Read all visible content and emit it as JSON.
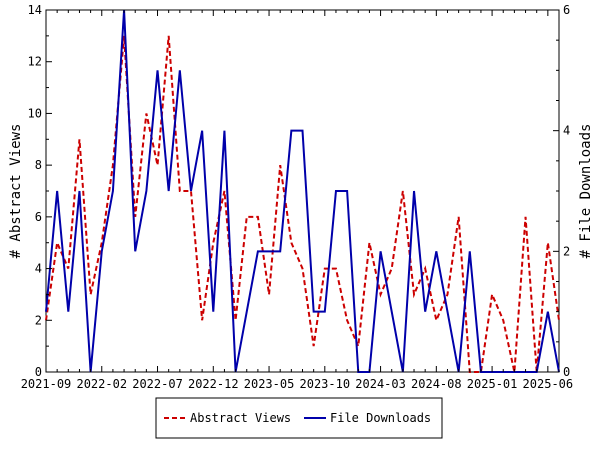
{
  "chart_data": {
    "type": "line",
    "x_tick_labels": [
      "2021-09",
      "2022-02",
      "2022-07",
      "2022-12",
      "2023-05",
      "2023-10",
      "2024-03",
      "2024-08",
      "2025-01",
      "2025-06"
    ],
    "ylabel_left": "# Abstract Views",
    "ylabel_right": "# File Downloads",
    "ylim_left": [
      0,
      14
    ],
    "ylim_right": [
      0,
      6
    ],
    "yticks_left": [
      "0",
      "2",
      "4",
      "6",
      "8",
      "10",
      "12",
      "14"
    ],
    "yticks_right": [
      "0",
      "2",
      "4",
      "6"
    ],
    "grid": false,
    "legend_position": "bottom-center",
    "x": [
      "2021-09",
      "2021-10",
      "2021-11",
      "2021-12",
      "2022-01",
      "2022-02",
      "2022-03",
      "2022-04",
      "2022-05",
      "2022-06",
      "2022-07",
      "2022-08",
      "2022-09",
      "2022-10",
      "2022-11",
      "2022-12",
      "2023-01",
      "2023-02",
      "2023-03",
      "2023-04",
      "2023-05",
      "2023-06",
      "2023-07",
      "2023-08",
      "2023-09",
      "2023-10",
      "2023-11",
      "2023-12",
      "2024-01",
      "2024-02",
      "2024-03",
      "2024-04",
      "2024-05",
      "2024-06",
      "2024-07",
      "2024-08",
      "2024-09",
      "2024-10",
      "2024-11",
      "2024-12",
      "2025-01",
      "2025-02",
      "2025-03",
      "2025-04",
      "2025-05",
      "2025-06",
      "2025-07"
    ],
    "series": [
      {
        "name": "Abstract Views",
        "axis": "left",
        "color": "#cc0000",
        "style": "dashed",
        "values": [
          2,
          5,
          4,
          9,
          3,
          5,
          8,
          13,
          6,
          10,
          8,
          13,
          7,
          7,
          2,
          5,
          7,
          2,
          6,
          6,
          3,
          8,
          5,
          4,
          1,
          4,
          4,
          2,
          1,
          5,
          3,
          4,
          7,
          3,
          4,
          2,
          3,
          6,
          0,
          0,
          3,
          2,
          0,
          6,
          0,
          5,
          2
        ]
      },
      {
        "name": "File Downloads",
        "axis": "right",
        "color": "#0000aa",
        "style": "solid",
        "values": [
          1,
          3,
          1,
          3,
          0,
          2,
          3,
          6,
          2,
          3,
          5,
          3,
          5,
          3,
          4,
          1,
          4,
          0,
          1,
          2,
          2,
          2,
          4,
          4,
          1,
          1,
          3,
          3,
          0,
          0,
          2,
          1,
          0,
          3,
          1,
          2,
          1,
          0,
          2,
          0,
          0,
          0,
          0,
          0,
          0,
          1,
          0
        ]
      }
    ]
  }
}
